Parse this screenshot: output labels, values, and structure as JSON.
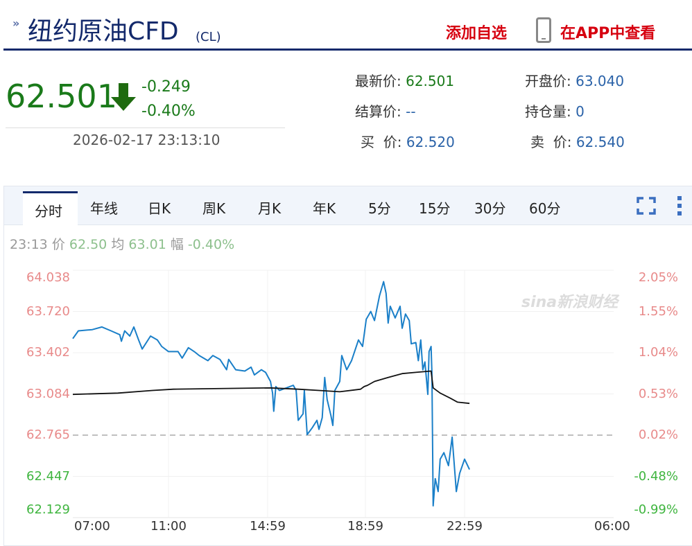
{
  "header": {
    "title": "纽约原油CFD",
    "code": "(CL)",
    "add_favorite": "添加自选",
    "view_in_app": "在APP中查看"
  },
  "quote": {
    "price": "62.501",
    "change": "-0.249",
    "change_pct": "-0.40%",
    "timestamp": "2026-02-17 23:13:10",
    "fields": [
      {
        "label": "最新价:",
        "value": "62.501"
      },
      {
        "label": "开盘价:",
        "value": "63.040"
      },
      {
        "label": "结算价:",
        "value": "--"
      },
      {
        "label": "持仓量:",
        "value": "0"
      },
      {
        "label": "买  价:",
        "value": "62.520"
      },
      {
        "label": "卖  价:",
        "value": "62.540"
      }
    ]
  },
  "tabs": [
    "分时",
    "年线",
    "日K",
    "周K",
    "月K",
    "年K",
    "5分",
    "15分",
    "30分",
    "60分"
  ],
  "active_tab": "分时",
  "info_bar": {
    "time": "23:13",
    "price_label": "价",
    "price": "62.50",
    "avg_label": "均",
    "avg": "63.01",
    "amp_label": "幅",
    "amp": "-0.40%"
  },
  "watermark": "sina新浪财经",
  "colors": {
    "up": "#e88a8a",
    "down": "#3fb53f",
    "price_line": "#1a7fc8",
    "avg_line": "#111111",
    "nav": "#13296b",
    "accent_red": "#d6000f"
  },
  "chart_data": {
    "type": "line",
    "x_ticks": [
      "07:00",
      "11:00",
      "14:59",
      "18:59",
      "22:59",
      "06:00"
    ],
    "y_ticks": [
      "64.038",
      "63.720",
      "63.402",
      "63.084",
      "62.765",
      "62.447",
      "62.129"
    ],
    "y_ticks_right": [
      "2.05%",
      "1.55%",
      "1.04%",
      "0.53%",
      "0.02%",
      "-0.48%",
      "-0.99%"
    ],
    "ylim": [
      62.129,
      64.038
    ],
    "reference_line": 62.765,
    "grid": true,
    "series": [
      {
        "role": "price",
        "points": [
          [
            "07:00",
            63.51
          ],
          [
            "07:14",
            63.57
          ],
          [
            "07:49",
            63.58
          ],
          [
            "08:13",
            63.6
          ],
          [
            "08:36",
            63.57
          ],
          [
            "08:58",
            63.54
          ],
          [
            "09:02",
            63.49
          ],
          [
            "09:10",
            63.57
          ],
          [
            "09:23",
            63.53
          ],
          [
            "09:33",
            63.6
          ],
          [
            "09:45",
            63.5
          ],
          [
            "09:54",
            63.43
          ],
          [
            "10:15",
            63.53
          ],
          [
            "10:32",
            63.5
          ],
          [
            "10:43",
            63.45
          ],
          [
            "11:00",
            63.41
          ],
          [
            "11:23",
            63.41
          ],
          [
            "11:33",
            63.36
          ],
          [
            "11:48",
            63.44
          ],
          [
            "12:02",
            63.41
          ],
          [
            "12:14",
            63.38
          ],
          [
            "12:35",
            63.34
          ],
          [
            "12:47",
            63.38
          ],
          [
            "13:04",
            63.35
          ],
          [
            "13:20",
            63.27
          ],
          [
            "13:25",
            63.35
          ],
          [
            "13:42",
            63.27
          ],
          [
            "14:04",
            63.26
          ],
          [
            "14:19",
            63.29
          ],
          [
            "14:27",
            63.23
          ],
          [
            "14:44",
            63.27
          ],
          [
            "14:54",
            63.25
          ],
          [
            "15:06",
            63.18
          ],
          [
            "15:11",
            63.09
          ],
          [
            "15:14",
            62.95
          ],
          [
            "15:19",
            63.14
          ],
          [
            "15:28",
            63.11
          ],
          [
            "15:45",
            63.13
          ],
          [
            "16:02",
            63.15
          ],
          [
            "16:09",
            63.11
          ],
          [
            "16:14",
            62.88
          ],
          [
            "16:26",
            62.93
          ],
          [
            "16:29",
            63.11
          ],
          [
            "16:36",
            62.77
          ],
          [
            "16:48",
            62.82
          ],
          [
            "17:00",
            62.88
          ],
          [
            "17:05",
            62.81
          ],
          [
            "17:13",
            62.9
          ],
          [
            "17:19",
            63.21
          ],
          [
            "17:25",
            63.04
          ],
          [
            "17:34",
            62.92
          ],
          [
            "17:39",
            62.84
          ],
          [
            "17:44",
            63.11
          ],
          [
            "17:56",
            63.18
          ],
          [
            "18:01",
            63.38
          ],
          [
            "18:13",
            63.27
          ],
          [
            "18:25",
            63.34
          ],
          [
            "18:42",
            63.5
          ],
          [
            "18:52",
            63.45
          ],
          [
            "19:01",
            63.66
          ],
          [
            "19:12",
            63.72
          ],
          [
            "19:21",
            63.65
          ],
          [
            "19:33",
            63.84
          ],
          [
            "19:43",
            63.95
          ],
          [
            "19:49",
            63.86
          ],
          [
            "19:54",
            63.63
          ],
          [
            "19:59",
            63.76
          ],
          [
            "20:11",
            63.67
          ],
          [
            "20:23",
            63.76
          ],
          [
            "20:28",
            63.59
          ],
          [
            "20:36",
            63.7
          ],
          [
            "20:45",
            63.65
          ],
          [
            "20:50",
            63.47
          ],
          [
            "21:01",
            63.48
          ],
          [
            "21:07",
            63.34
          ],
          [
            "21:13",
            63.5
          ],
          [
            "21:18",
            63.27
          ],
          [
            "21:23",
            63.33
          ],
          [
            "21:30",
            63.08
          ],
          [
            "21:33",
            63.41
          ],
          [
            "21:38",
            63.45
          ],
          [
            "21:40",
            63.25
          ],
          [
            "21:43",
            62.22
          ],
          [
            "21:48",
            62.43
          ],
          [
            "21:55",
            62.33
          ],
          [
            "22:00",
            62.58
          ],
          [
            "22:09",
            62.63
          ],
          [
            "22:20",
            62.53
          ],
          [
            "22:29",
            62.75
          ],
          [
            "22:39",
            62.33
          ],
          [
            "22:47",
            62.47
          ],
          [
            "22:59",
            62.58
          ],
          [
            "23:13",
            62.5
          ]
        ]
      },
      {
        "role": "average",
        "points": [
          [
            "07:00",
            63.08
          ],
          [
            "08:53",
            63.09
          ],
          [
            "10:20",
            63.11
          ],
          [
            "11:12",
            63.12
          ],
          [
            "15:06",
            63.13
          ],
          [
            "16:14",
            63.12
          ],
          [
            "17:05",
            63.11
          ],
          [
            "17:56",
            63.1
          ],
          [
            "18:47",
            63.12
          ],
          [
            "18:56",
            63.14
          ],
          [
            "19:04",
            63.15
          ],
          [
            "19:21",
            63.18
          ],
          [
            "19:54",
            63.21
          ],
          [
            "20:28",
            63.24
          ],
          [
            "21:01",
            63.25
          ],
          [
            "21:38",
            63.26
          ],
          [
            "21:43",
            63.13
          ],
          [
            "22:00",
            63.09
          ],
          [
            "22:25",
            63.05
          ],
          [
            "22:42",
            63.02
          ],
          [
            "23:13",
            63.01
          ]
        ]
      }
    ]
  }
}
